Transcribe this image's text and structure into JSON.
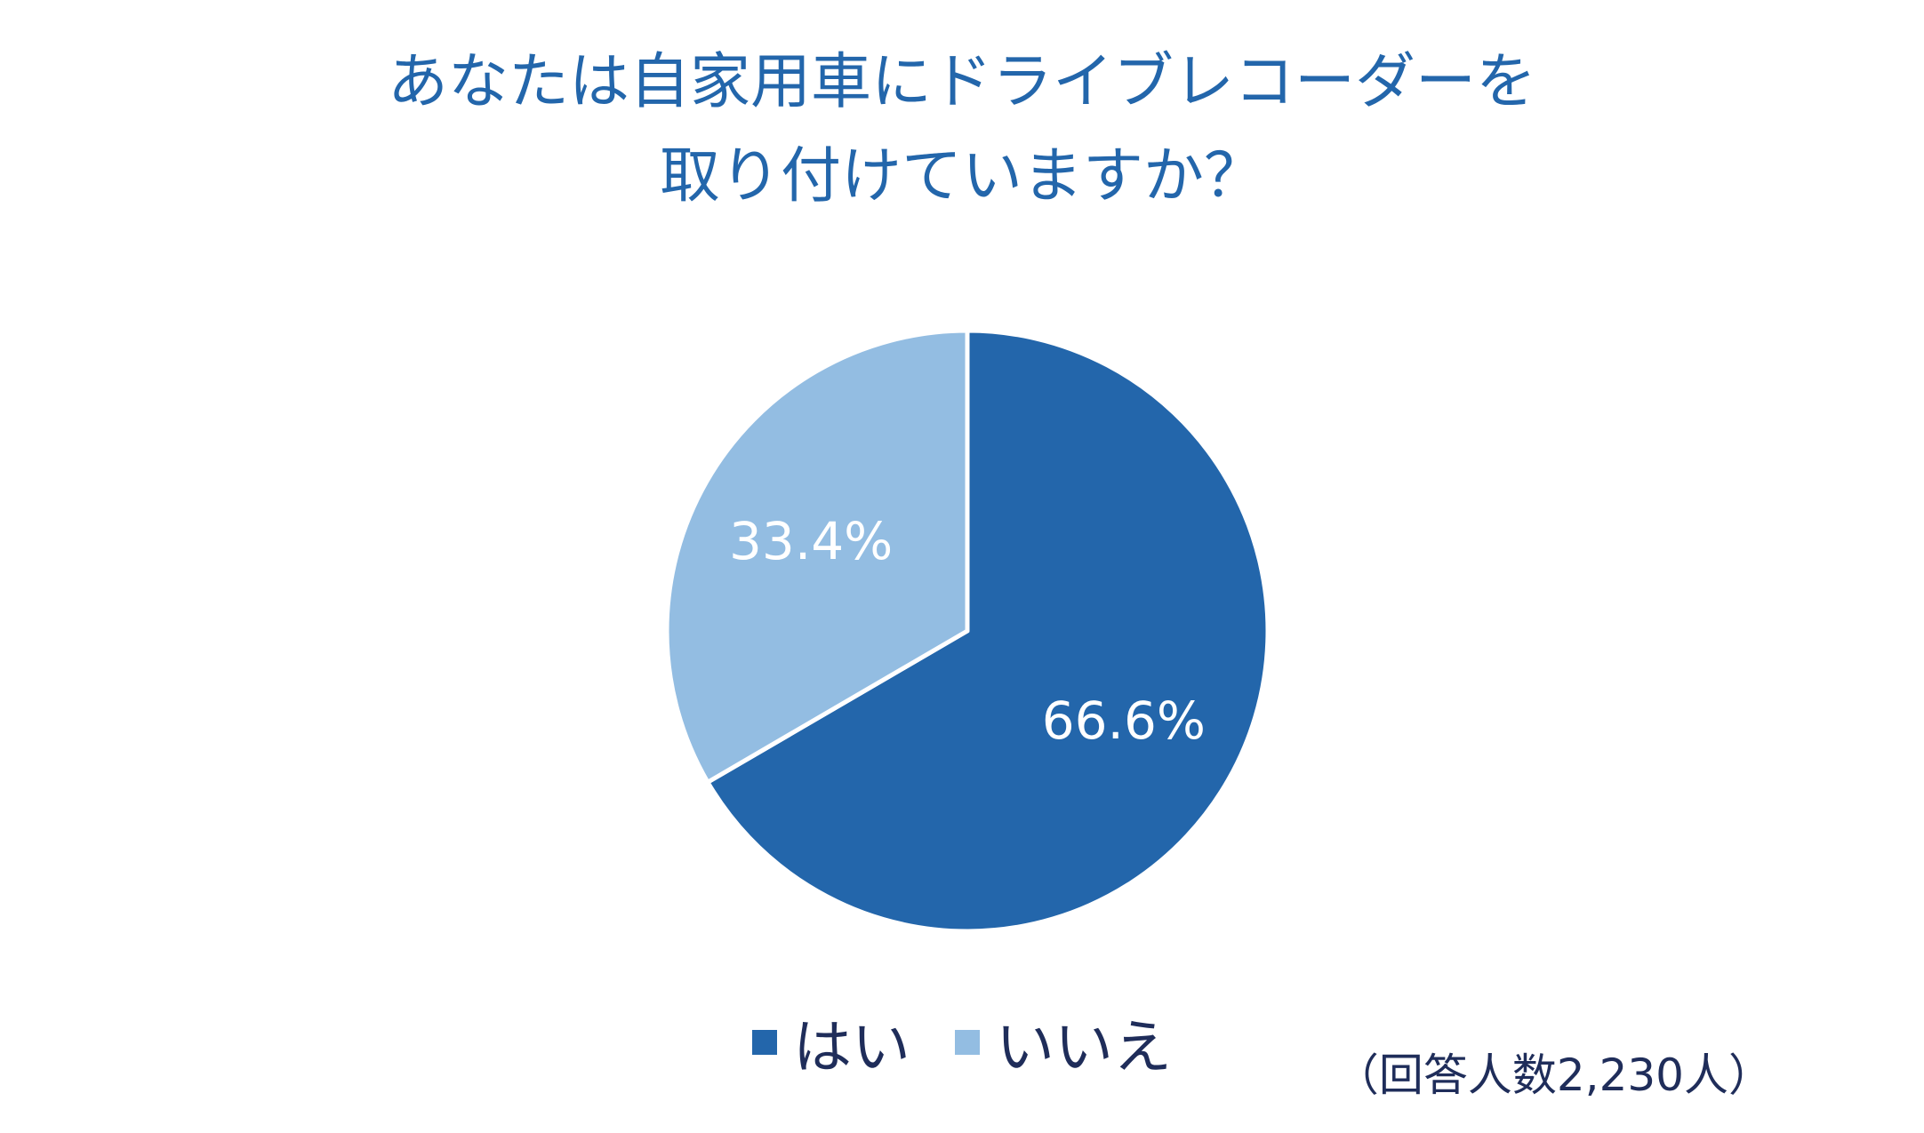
{
  "chart_data": {
    "type": "pie",
    "title_lines": [
      "あなたは自家用車にドライブレコーダーを",
      "取り付けていますか？"
    ],
    "slices": [
      {
        "label": "はい",
        "value": 66.6,
        "display": "66.6%",
        "color": "#2366ab"
      },
      {
        "label": "いいえ",
        "value": 33.4,
        "display": "33.4%",
        "color": "#93bde2"
      }
    ],
    "legend_position": "bottom",
    "note": "（回答人数2,230人）"
  }
}
